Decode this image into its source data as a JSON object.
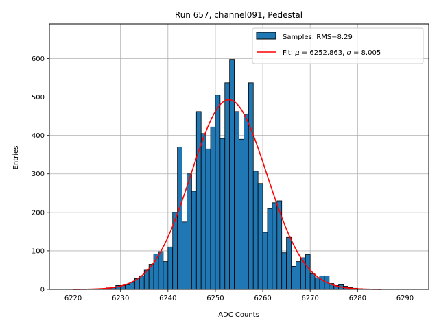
{
  "chart_data": {
    "type": "bar",
    "title": "Run 657, channel091, Pedestal",
    "xlabel": "ADC Counts",
    "ylabel": "Entries",
    "xlim": [
      6215,
      6295
    ],
    "ylim": [
      0,
      690
    ],
    "xticks": [
      6220,
      6230,
      6240,
      6250,
      6260,
      6270,
      6280,
      6290
    ],
    "yticks": [
      0,
      100,
      200,
      300,
      400,
      500,
      600
    ],
    "grid": true,
    "legend_position": "top-right",
    "colors": {
      "bars": "#1f77b4",
      "bar_edge": "#000000",
      "fit": "#ff0000",
      "grid": "#b0b0b0"
    },
    "histogram": {
      "name": "Samples: RMS=8.29",
      "bin_start": 6226,
      "bin_width": 1,
      "values": [
        2,
        4,
        5,
        10,
        10,
        12,
        18,
        28,
        35,
        50,
        65,
        92,
        98,
        72,
        110,
        200,
        370,
        175,
        300,
        255,
        462,
        405,
        365,
        422,
        505,
        392,
        537,
        598,
        462,
        390,
        455,
        537,
        307,
        275,
        148,
        210,
        225,
        230,
        95,
        135,
        60,
        72,
        82,
        90,
        40,
        30,
        35,
        35,
        15,
        10,
        12,
        8,
        5,
        3,
        2
      ]
    },
    "fit": {
      "name": "Fit: $\\mu$ = 6252.863, $\\sigma$ = 8.005",
      "mu": 6252.863,
      "sigma": 8.005,
      "amplitude": 493,
      "x_range": [
        6220,
        6285
      ]
    }
  },
  "legend": {
    "samples_label": "Samples: RMS=8.29",
    "fit_prefix": "Fit: ",
    "fit_mu_symbol": "μ",
    "fit_mu_value": " = 6252.863, ",
    "fit_sigma_symbol": "σ",
    "fit_sigma_value": " = 8.005"
  }
}
